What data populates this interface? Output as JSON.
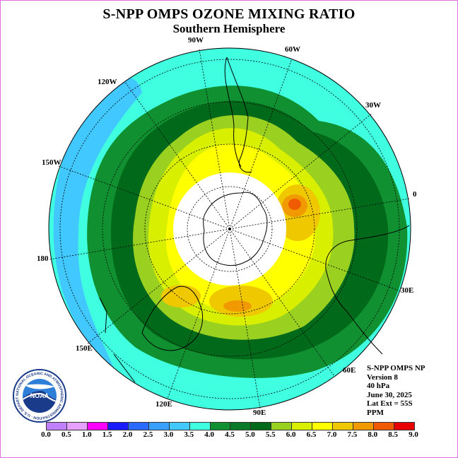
{
  "title": "S-NPP OMPS OZONE MIXING RATIO",
  "subtitle": "Southern Hemisphere",
  "longitude_labels": [
    "90W",
    "60W",
    "120W",
    "30W",
    "150W",
    "0",
    "180",
    "30E",
    "150E",
    "60E",
    "120E",
    "90E"
  ],
  "info": {
    "instrument": "S-NPP OMPS NP",
    "version": "Version 8",
    "level": "40 hPa",
    "date": "June 30, 2025",
    "lat_ext": "Lat Ext = 55S",
    "units": "PPM"
  },
  "logo": {
    "text": "NOAA",
    "ring_text": "NATIONAL OCEANIC AND ATMOSPHERIC ADMINISTRATION · U.S. DEPARTMENT OF COMMERCE"
  },
  "colorbar": {
    "ticks": [
      "0.0",
      "0.5",
      "1.0",
      "1.5",
      "2.0",
      "2.5",
      "3.0",
      "3.5",
      "4.0",
      "4.5",
      "5.0",
      "5.5",
      "6.0",
      "6.5",
      "7.0",
      "7.5",
      "8.0",
      "8.5",
      "9.0"
    ],
    "colors": [
      "#c080ff",
      "#e8a0ff",
      "#ff00ff",
      "#1a1aff",
      "#2a6aff",
      "#3aa0ff",
      "#40c8ff",
      "#40ffe0",
      "#109030",
      "#0a7a28",
      "#006a1a",
      "#9ad020",
      "#d8f000",
      "#ffff00",
      "#f0c800",
      "#f09a00",
      "#f05a00",
      "#e80000",
      "#8a5a40"
    ]
  },
  "map_colors": {
    "outer": "#40ffe0",
    "blue": "#40c8ff",
    "green": "#109030",
    "darkgreen": "#006a1a",
    "lime": "#9ad020",
    "yellowgreen": "#d8f000",
    "yellow": "#ffff00",
    "gold": "#f0c800",
    "orange": "#f09a00",
    "red": "#f05a00"
  }
}
